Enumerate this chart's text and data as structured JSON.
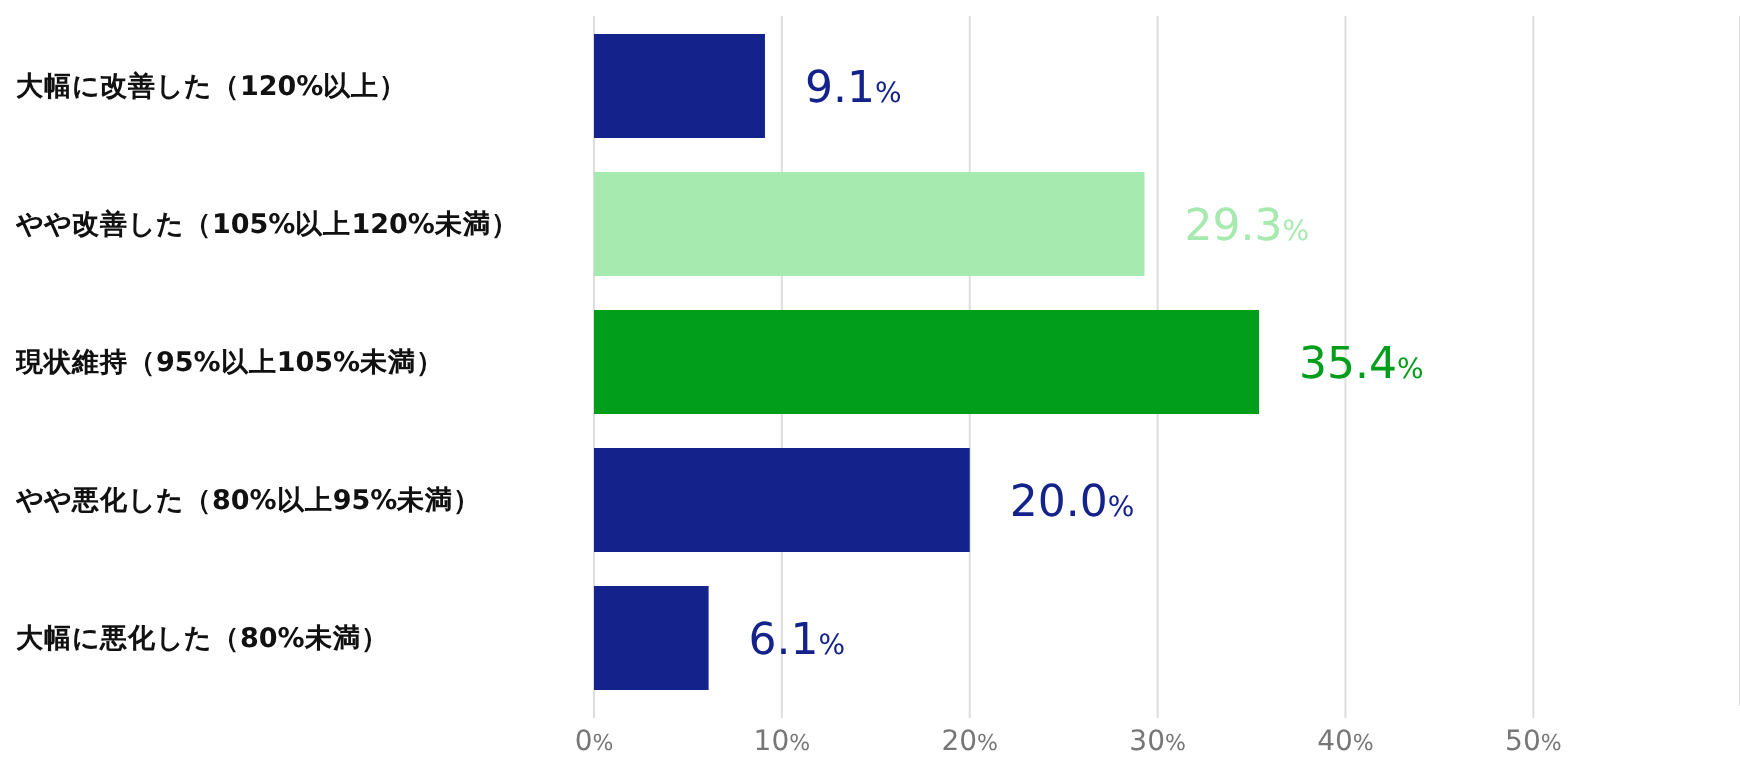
{
  "chart_data": {
    "type": "bar",
    "orientation": "horizontal",
    "categories": [
      "大幅に改善した（120%以上）",
      "やや改善した（105%以上120%未満）",
      "現状維持（95%以上105%未満）",
      "やや悪化した（80%以上95%未満）",
      "大幅に悪化した（80%未満）"
    ],
    "values": [
      9.1,
      29.3,
      35.4,
      20.0,
      6.1
    ],
    "colors": [
      "#13238b",
      "#a6eab0",
      "#009e1a",
      "#13238b",
      "#13238b"
    ],
    "value_labels": [
      "9.1%",
      "29.3%",
      "35.4%",
      "20.0%",
      "6.1%"
    ],
    "xlim": [
      0,
      61
    ],
    "xticks": [
      {
        "value": 0,
        "label": "0%"
      },
      {
        "value": 10,
        "label": "10%"
      },
      {
        "value": 20,
        "label": "20%"
      },
      {
        "value": 30,
        "label": "30%"
      },
      {
        "value": 40,
        "label": "40%"
      },
      {
        "value": 50,
        "label": "50%"
      }
    ],
    "grid": "x"
  }
}
